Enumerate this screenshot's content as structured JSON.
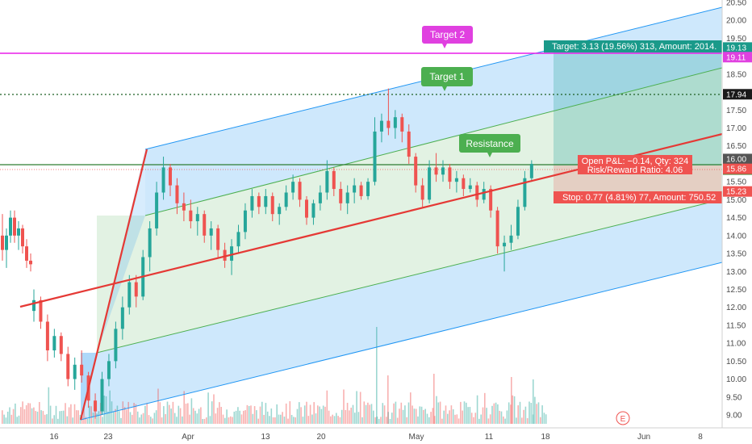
{
  "chart_data": {
    "type": "candlestick",
    "y_axis_position": "right",
    "ylim": [
      8.8,
      20.6
    ],
    "y_ticks": [
      "20.50",
      "20.00",
      "19.50",
      "19.00",
      "18.50",
      "18.00",
      "17.50",
      "17.00",
      "16.50",
      "16.00",
      "15.50",
      "15.00",
      "14.50",
      "14.00",
      "13.50",
      "13.00",
      "12.50",
      "12.00",
      "11.50",
      "11.00",
      "10.50",
      "10.00",
      "9.50",
      "9.00"
    ],
    "x_ticks": [
      "16",
      "23",
      "Apr",
      "13",
      "20",
      "May",
      "11",
      "18",
      "Jun",
      "8"
    ],
    "candles": [
      {
        "o": 14.0,
        "h": 14.6,
        "l": 13.3,
        "c": 13.6
      },
      {
        "o": 13.6,
        "h": 14.2,
        "l": 13.1,
        "c": 14.0
      },
      {
        "o": 14.0,
        "h": 14.7,
        "l": 13.8,
        "c": 14.5
      },
      {
        "o": 14.5,
        "h": 14.7,
        "l": 13.8,
        "c": 14.0
      },
      {
        "o": 14.0,
        "h": 14.4,
        "l": 13.6,
        "c": 14.2
      },
      {
        "o": 14.2,
        "h": 14.3,
        "l": 13.5,
        "c": 13.7
      },
      {
        "o": 13.7,
        "h": 13.9,
        "l": 13.1,
        "c": 13.3
      },
      {
        "o": 13.3,
        "h": 13.5,
        "l": 13.0,
        "c": 13.2
      },
      {
        "o": 11.9,
        "h": 12.5,
        "l": 11.6,
        "c": 12.2
      },
      {
        "o": 12.2,
        "h": 12.3,
        "l": 11.4,
        "c": 11.6
      },
      {
        "o": 11.6,
        "h": 11.8,
        "l": 10.5,
        "c": 10.8
      },
      {
        "o": 10.8,
        "h": 11.4,
        "l": 10.6,
        "c": 11.2
      },
      {
        "o": 11.2,
        "h": 11.3,
        "l": 10.5,
        "c": 10.7
      },
      {
        "o": 10.7,
        "h": 10.9,
        "l": 9.8,
        "c": 10.0
      },
      {
        "o": 10.0,
        "h": 10.6,
        "l": 9.7,
        "c": 10.4
      },
      {
        "o": 10.4,
        "h": 10.8,
        "l": 9.9,
        "c": 10.1
      },
      {
        "o": 10.1,
        "h": 10.2,
        "l": 9.2,
        "c": 9.4
      },
      {
        "o": 9.4,
        "h": 9.6,
        "l": 8.9,
        "c": 9.1
      },
      {
        "o": 9.1,
        "h": 10.2,
        "l": 9.0,
        "c": 10.0
      },
      {
        "o": 10.0,
        "h": 10.7,
        "l": 9.8,
        "c": 10.5
      },
      {
        "o": 10.5,
        "h": 11.6,
        "l": 10.3,
        "c": 11.4
      },
      {
        "o": 11.4,
        "h": 12.3,
        "l": 11.1,
        "c": 12.0
      },
      {
        "o": 12.0,
        "h": 12.9,
        "l": 11.8,
        "c": 12.7
      },
      {
        "o": 12.7,
        "h": 12.9,
        "l": 12.0,
        "c": 12.3
      },
      {
        "o": 12.3,
        "h": 13.6,
        "l": 12.2,
        "c": 13.4
      },
      {
        "o": 13.4,
        "h": 14.4,
        "l": 13.0,
        "c": 14.2
      },
      {
        "o": 14.2,
        "h": 15.5,
        "l": 14.0,
        "c": 15.2
      },
      {
        "o": 15.2,
        "h": 16.2,
        "l": 15.0,
        "c": 15.9
      },
      {
        "o": 15.9,
        "h": 16.0,
        "l": 15.1,
        "c": 15.4
      },
      {
        "o": 15.4,
        "h": 15.6,
        "l": 14.6,
        "c": 14.9
      },
      {
        "o": 14.9,
        "h": 15.2,
        "l": 14.4,
        "c": 14.7
      },
      {
        "o": 14.7,
        "h": 15.0,
        "l": 14.2,
        "c": 14.4
      },
      {
        "o": 14.4,
        "h": 14.8,
        "l": 14.0,
        "c": 14.6
      },
      {
        "o": 14.6,
        "h": 14.7,
        "l": 13.8,
        "c": 14.0
      },
      {
        "o": 14.0,
        "h": 14.4,
        "l": 13.6,
        "c": 14.2
      },
      {
        "o": 14.2,
        "h": 14.3,
        "l": 13.4,
        "c": 13.6
      },
      {
        "o": 13.6,
        "h": 13.8,
        "l": 13.1,
        "c": 13.3
      },
      {
        "o": 13.3,
        "h": 13.9,
        "l": 12.9,
        "c": 13.7
      },
      {
        "o": 13.7,
        "h": 14.3,
        "l": 13.5,
        "c": 14.1
      },
      {
        "o": 14.1,
        "h": 14.9,
        "l": 13.9,
        "c": 14.7
      },
      {
        "o": 14.7,
        "h": 15.3,
        "l": 14.5,
        "c": 15.1
      },
      {
        "o": 15.1,
        "h": 15.2,
        "l": 14.6,
        "c": 14.8
      },
      {
        "o": 14.8,
        "h": 15.3,
        "l": 14.6,
        "c": 15.1
      },
      {
        "o": 15.1,
        "h": 15.2,
        "l": 14.4,
        "c": 14.6
      },
      {
        "o": 14.6,
        "h": 14.9,
        "l": 14.3,
        "c": 14.8
      },
      {
        "o": 14.8,
        "h": 15.4,
        "l": 14.7,
        "c": 15.2
      },
      {
        "o": 15.2,
        "h": 15.7,
        "l": 15.0,
        "c": 15.5
      },
      {
        "o": 15.5,
        "h": 15.6,
        "l": 14.8,
        "c": 15.0
      },
      {
        "o": 15.0,
        "h": 15.1,
        "l": 14.3,
        "c": 14.5
      },
      {
        "o": 14.5,
        "h": 15.0,
        "l": 14.3,
        "c": 14.9
      },
      {
        "o": 14.9,
        "h": 15.4,
        "l": 14.7,
        "c": 15.2
      },
      {
        "o": 15.2,
        "h": 16.1,
        "l": 15.0,
        "c": 15.8
      },
      {
        "o": 15.8,
        "h": 15.9,
        "l": 15.1,
        "c": 15.3
      },
      {
        "o": 15.3,
        "h": 15.5,
        "l": 14.7,
        "c": 14.9
      },
      {
        "o": 14.9,
        "h": 15.4,
        "l": 14.6,
        "c": 15.2
      },
      {
        "o": 15.2,
        "h": 15.6,
        "l": 14.9,
        "c": 15.4
      },
      {
        "o": 15.4,
        "h": 15.5,
        "l": 15.0,
        "c": 15.1
      },
      {
        "o": 15.1,
        "h": 15.6,
        "l": 15.0,
        "c": 15.5
      },
      {
        "o": 15.5,
        "h": 17.3,
        "l": 15.4,
        "c": 16.9
      },
      {
        "o": 16.9,
        "h": 17.4,
        "l": 16.6,
        "c": 17.2
      },
      {
        "o": 17.2,
        "h": 18.1,
        "l": 16.8,
        "c": 17.0
      },
      {
        "o": 17.0,
        "h": 17.5,
        "l": 16.7,
        "c": 17.3
      },
      {
        "o": 17.3,
        "h": 17.4,
        "l": 16.6,
        "c": 16.9
      },
      {
        "o": 16.9,
        "h": 17.1,
        "l": 16.0,
        "c": 16.2
      },
      {
        "o": 16.2,
        "h": 16.3,
        "l": 15.2,
        "c": 15.4
      },
      {
        "o": 15.4,
        "h": 15.6,
        "l": 14.8,
        "c": 15.0
      },
      {
        "o": 15.0,
        "h": 16.1,
        "l": 14.9,
        "c": 15.9
      },
      {
        "o": 15.9,
        "h": 16.3,
        "l": 15.5,
        "c": 15.7
      },
      {
        "o": 15.7,
        "h": 16.1,
        "l": 15.5,
        "c": 15.9
      },
      {
        "o": 15.9,
        "h": 16.0,
        "l": 15.3,
        "c": 15.5
      },
      {
        "o": 15.5,
        "h": 15.8,
        "l": 15.2,
        "c": 15.6
      },
      {
        "o": 15.6,
        "h": 15.7,
        "l": 15.1,
        "c": 15.3
      },
      {
        "o": 15.3,
        "h": 15.6,
        "l": 15.2,
        "c": 15.4
      },
      {
        "o": 15.4,
        "h": 15.5,
        "l": 14.8,
        "c": 15.0
      },
      {
        "o": 15.0,
        "h": 15.5,
        "l": 14.9,
        "c": 15.3
      },
      {
        "o": 15.3,
        "h": 15.4,
        "l": 14.5,
        "c": 14.7
      },
      {
        "o": 14.7,
        "h": 14.8,
        "l": 13.5,
        "c": 13.7
      },
      {
        "o": 13.7,
        "h": 14.0,
        "l": 13.0,
        "c": 13.8
      },
      {
        "o": 13.8,
        "h": 14.3,
        "l": 13.6,
        "c": 14.0
      },
      {
        "o": 14.0,
        "h": 15.0,
        "l": 13.9,
        "c": 14.8
      },
      {
        "o": 14.8,
        "h": 15.8,
        "l": 14.7,
        "c": 15.6
      },
      {
        "o": 15.6,
        "h": 16.1,
        "l": 15.5,
        "c": 16.0
      }
    ],
    "volume_visible": true,
    "price_tags": [
      {
        "label": "20.50",
        "color": "#ffffff"
      },
      {
        "label": "19.13",
        "color": "#1a9a8a"
      },
      {
        "label": "19.11",
        "color": "#e040e0"
      },
      {
        "label": "17.94",
        "color": "#1a1a1a"
      },
      {
        "label": "16.00",
        "color": "#555555"
      },
      {
        "label": "16.00",
        "color": "#1e7e1e"
      },
      {
        "label": "15.86",
        "color": "#ef5350"
      },
      {
        "label": "15.23",
        "color": "#ef5350"
      }
    ],
    "annotations": [
      {
        "label": "Target 2",
        "color": "#e040e0"
      },
      {
        "label": "Target 1",
        "color": "#4caf50"
      },
      {
        "label": "Resistance",
        "color": "#4caf50"
      }
    ],
    "position": {
      "target_text": "Target: 3.13 (19.56%) 313, Amount: 2014.",
      "open_pl_text": "Open P&L: −0.14, Qty: 324",
      "rr_text": "Risk/Reward Ratio: 4.06",
      "stop_text": "Stop: 0.77 (4.81%) 77, Amount: 750.52"
    },
    "earnings_marker": "E",
    "grid": false,
    "colors": {
      "up": "#26a69a",
      "down": "#ef5350",
      "channel_blue": "#2196f3",
      "channel_green": "#4caf50",
      "trendline": "#e53935",
      "target_line": "#e91ee9"
    }
  }
}
